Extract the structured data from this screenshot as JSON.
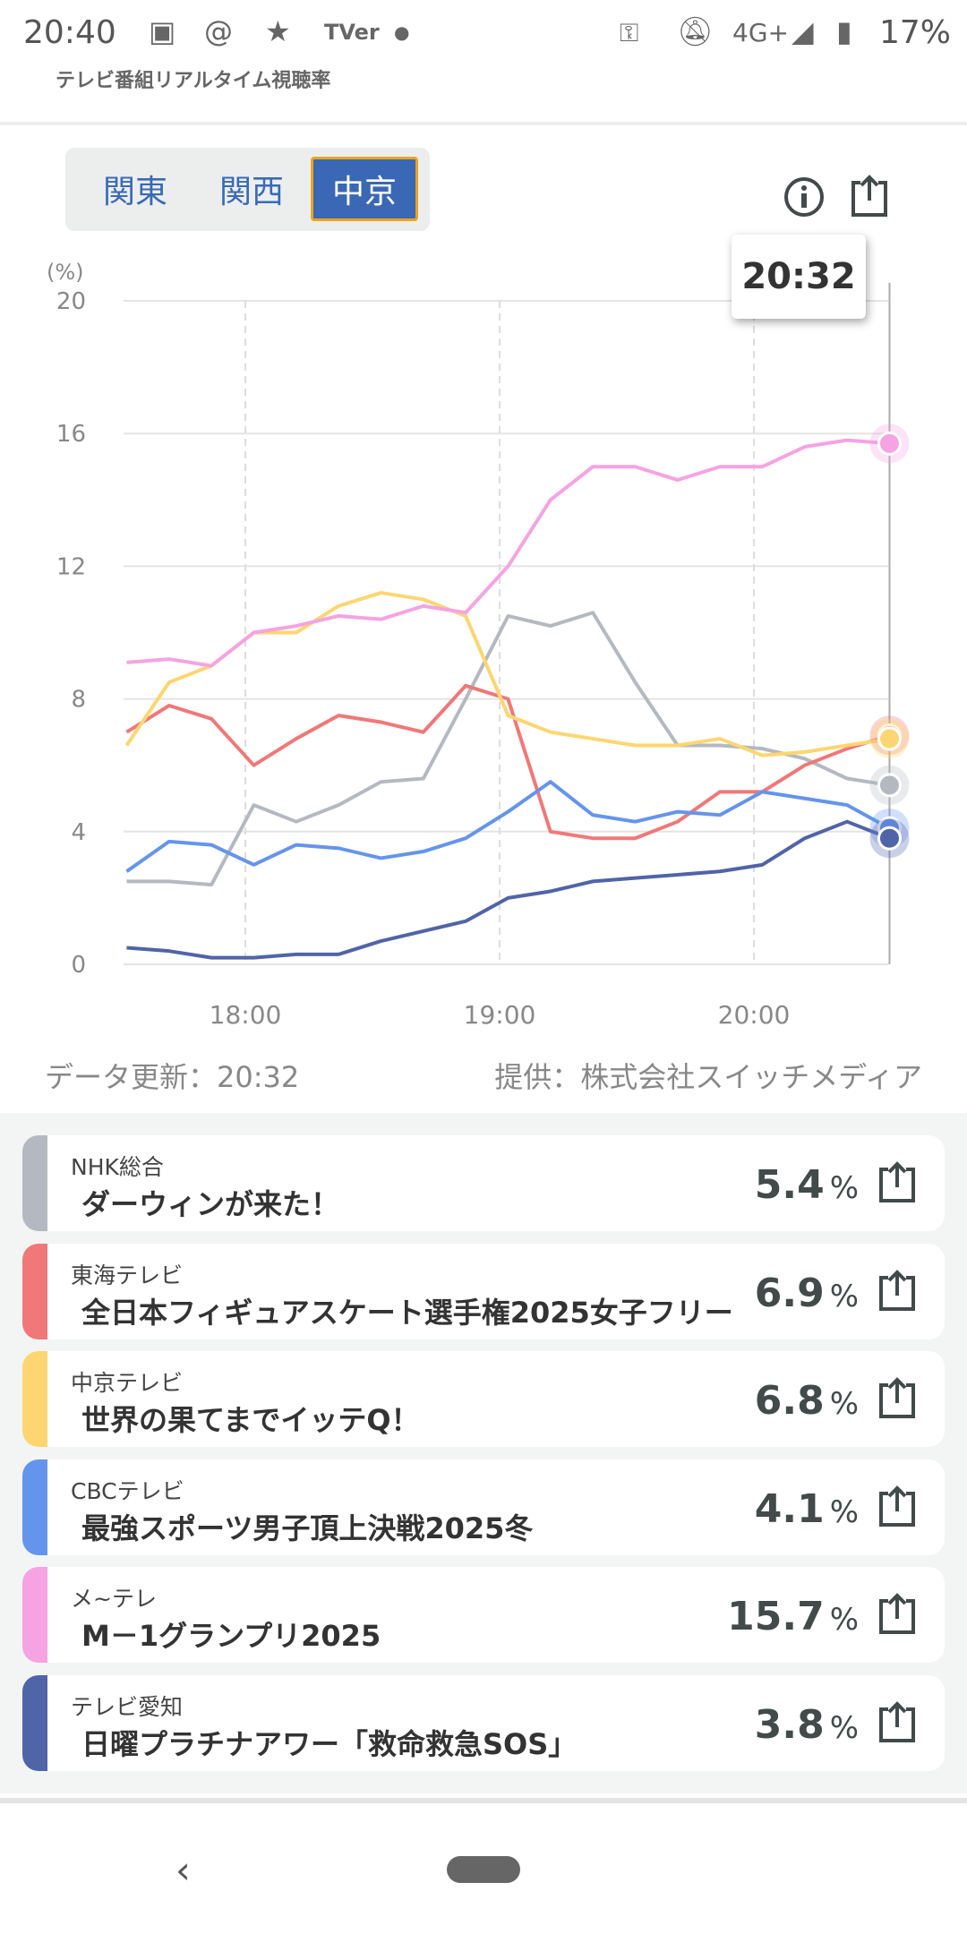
{
  "status": {
    "time": "20:40",
    "network": "4G+",
    "battery": "17%",
    "icons": [
      "gallery-icon",
      "threads-icon",
      "star-icon",
      "tver-icon",
      "dot-icon",
      "vpn-key-icon",
      "bell-off-icon",
      "signal-icon",
      "battery-charging-icon"
    ],
    "tver": "TVer"
  },
  "app_title": "テレビ番組リアルタイム視聴率",
  "tabs": [
    {
      "label": "関東"
    },
    {
      "label": "関西"
    },
    {
      "label": "中京",
      "active": true
    }
  ],
  "tooltip": "20:32",
  "chart_data": {
    "type": "line",
    "ylabel": "(%)",
    "ylim": [
      0,
      20
    ],
    "yticks": [
      "0",
      "4",
      "8",
      "12",
      "16",
      "20"
    ],
    "xticks": [
      "18:00",
      "19:00",
      "20:00"
    ],
    "xrange": [
      "17:30",
      "20:32"
    ],
    "x": [
      "17:32",
      "17:42",
      "17:52",
      "18:02",
      "18:12",
      "18:22",
      "18:32",
      "18:42",
      "18:52",
      "19:02",
      "19:12",
      "19:22",
      "19:32",
      "19:42",
      "19:52",
      "20:02",
      "20:12",
      "20:22",
      "20:32"
    ],
    "series": [
      {
        "name": "NHK総合",
        "color": "#b4b9c1",
        "values": [
          2.5,
          2.5,
          2.4,
          4.8,
          4.3,
          4.8,
          5.5,
          5.6,
          8.0,
          10.5,
          10.2,
          10.6,
          8.5,
          6.6,
          6.6,
          6.5,
          6.2,
          5.6,
          5.4
        ]
      },
      {
        "name": "東海テレビ",
        "color": "#f07878",
        "values": [
          7.0,
          7.8,
          7.4,
          6.0,
          6.8,
          7.5,
          7.3,
          7.0,
          8.4,
          8.0,
          4.0,
          3.8,
          3.8,
          4.3,
          5.2,
          5.2,
          6.0,
          6.5,
          6.9
        ]
      },
      {
        "name": "中京テレビ",
        "color": "#fdd671",
        "values": [
          6.6,
          8.5,
          9.0,
          10.0,
          10.0,
          10.8,
          11.2,
          11.0,
          10.5,
          7.5,
          7.0,
          6.8,
          6.6,
          6.6,
          6.8,
          6.3,
          6.4,
          6.6,
          6.8
        ]
      },
      {
        "name": "CBCテレビ",
        "color": "#6495ed",
        "values": [
          2.8,
          3.7,
          3.6,
          3.0,
          3.6,
          3.5,
          3.2,
          3.4,
          3.8,
          4.6,
          5.5,
          4.5,
          4.3,
          4.6,
          4.5,
          5.2,
          5.0,
          4.8,
          4.1
        ]
      },
      {
        "name": "メ~テレ",
        "color": "#f5a3e3",
        "values": [
          9.1,
          9.2,
          9.0,
          10.0,
          10.2,
          10.5,
          10.4,
          10.8,
          10.6,
          12.0,
          14.0,
          15.0,
          15.0,
          14.6,
          15.0,
          15.0,
          15.6,
          15.8,
          15.7
        ]
      },
      {
        "name": "テレビ愛知",
        "color": "#5064a8",
        "values": [
          0.5,
          0.4,
          0.2,
          0.2,
          0.3,
          0.3,
          0.7,
          1.0,
          1.3,
          2.0,
          2.2,
          2.5,
          2.6,
          2.7,
          2.8,
          3.0,
          3.8,
          4.3,
          3.8
        ]
      }
    ]
  },
  "footer": {
    "updated": "データ更新：20:32",
    "source": "提供：株式会社スイッチメディア"
  },
  "programs": [
    {
      "channel": "NHK総合",
      "title": "ダーウィンが来た！",
      "rating": "5.4",
      "unit": "%",
      "color": "#b4b9c1"
    },
    {
      "channel": "東海テレビ",
      "title": "全日本フィギュアスケート選手権2025女子フリー",
      "rating": "6.9",
      "unit": "%",
      "color": "#f07878"
    },
    {
      "channel": "中京テレビ",
      "title": "世界の果てまでイッテQ！",
      "rating": "6.8",
      "unit": "%",
      "color": "#fdd671"
    },
    {
      "channel": "CBCテレビ",
      "title": "最強スポーツ男子頂上決戦2025冬",
      "rating": "4.1",
      "unit": "%",
      "color": "#6495ed"
    },
    {
      "channel": "メ~テレ",
      "title": "M－1グランプリ2025",
      "rating": "15.7",
      "unit": "%",
      "color": "#f5a3e3"
    },
    {
      "channel": "テレビ愛知",
      "title": "日曜プラチナアワー「救命救急SOS」",
      "rating": "3.8",
      "unit": "%",
      "color": "#5064a8"
    }
  ],
  "nav": {
    "back": "‹"
  }
}
